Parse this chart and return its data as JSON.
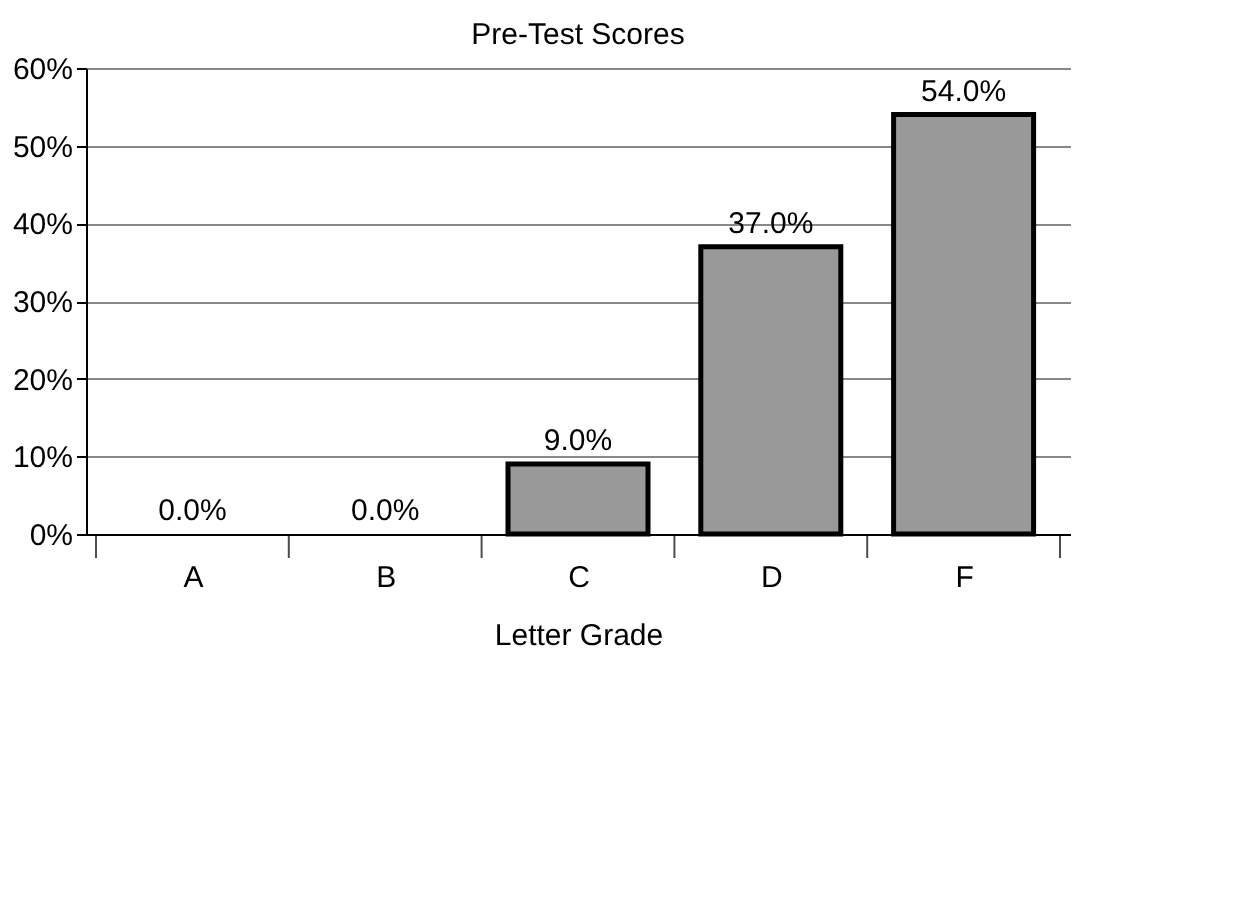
{
  "chart_data": {
    "type": "bar",
    "title": "Pre-Test Scores",
    "xlabel": "Letter Grade",
    "categories": [
      "A",
      "B",
      "C",
      "D",
      "F"
    ],
    "values": [
      0,
      0,
      9,
      37,
      54
    ],
    "value_labels": [
      "0.0%",
      "0.0%",
      "9.0%",
      "37.0%",
      "54.0%"
    ],
    "color": "#999999",
    "ylim": [
      0,
      60
    ],
    "yticks": [
      {
        "value": 0,
        "label": "0%"
      },
      {
        "value": 10,
        "label": "10%"
      },
      {
        "value": 20,
        "label": "20%"
      },
      {
        "value": 30,
        "label": "30%"
      },
      {
        "value": 40,
        "label": "40%"
      },
      {
        "value": 50,
        "label": "50%"
      },
      {
        "value": 60,
        "label": "60%"
      }
    ],
    "grid": "y"
  }
}
